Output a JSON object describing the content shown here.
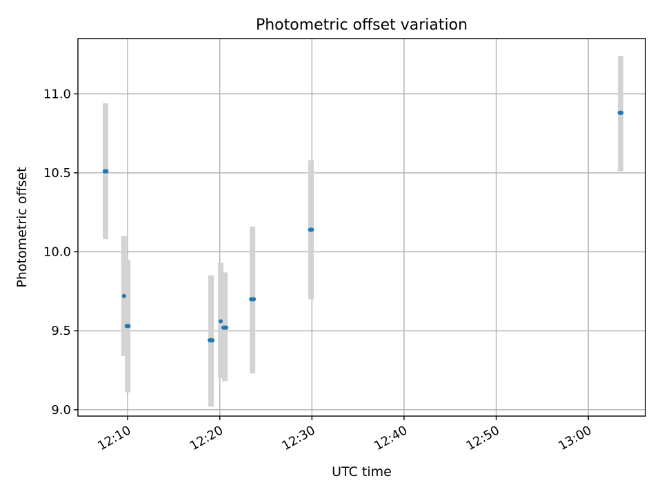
{
  "chart_data": {
    "type": "scatter",
    "title": "Photometric offset variation",
    "xlabel": "UTC time",
    "ylabel": "Photometric offset",
    "x_is_time": true,
    "xlim": [
      "12:04:36",
      "13:06:12"
    ],
    "ylim": [
      8.96,
      11.35
    ],
    "grid": true,
    "x_ticks": [
      "12:10",
      "12:20",
      "12:30",
      "12:40",
      "12:50",
      "13:00"
    ],
    "y_ticks": [
      "9.0",
      "9.5",
      "10.0",
      "10.5",
      "11.0"
    ],
    "marker_color": "#1f77b4",
    "errorbar_color": "#d3d3d3",
    "points": [
      {
        "t": "12:07:30",
        "t_end": "12:07:42",
        "y": 10.51,
        "ylow": 10.08,
        "yhigh": 10.94
      },
      {
        "t": "12:09:36",
        "t_end": "12:09:36",
        "y": 9.72,
        "ylow": 9.34,
        "yhigh": 10.1
      },
      {
        "t": "12:09:54",
        "t_end": "12:10:06",
        "y": 9.53,
        "ylow": 9.11,
        "yhigh": 9.95
      },
      {
        "t": "12:18:54",
        "t_end": "12:19:12",
        "y": 9.44,
        "ylow": 9.02,
        "yhigh": 9.85
      },
      {
        "t": "12:20:06",
        "t_end": "12:20:06",
        "y": 9.56,
        "ylow": 9.2,
        "yhigh": 9.93
      },
      {
        "t": "12:20:24",
        "t_end": "12:20:42",
        "y": 9.52,
        "ylow": 9.18,
        "yhigh": 9.87
      },
      {
        "t": "12:23:24",
        "t_end": "12:23:42",
        "y": 9.7,
        "ylow": 9.23,
        "yhigh": 10.16
      },
      {
        "t": "12:29:48",
        "t_end": "12:30:00",
        "y": 10.14,
        "ylow": 9.7,
        "yhigh": 10.58
      },
      {
        "t": "13:03:24",
        "t_end": "13:03:36",
        "y": 10.88,
        "ylow": 10.51,
        "yhigh": 11.24
      }
    ]
  }
}
